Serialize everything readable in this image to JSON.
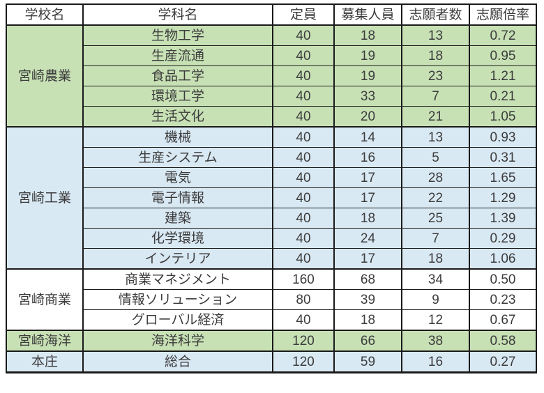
{
  "chart_data": {
    "type": "table",
    "columns": [
      "学校名",
      "学科名",
      "定員",
      "募集人員",
      "志願者数",
      "志願倍率"
    ],
    "groups": [
      {
        "school": "宮崎農業",
        "color": "green",
        "rows": [
          {
            "dept": "生物工学",
            "capacity": "40",
            "recruit": "18",
            "applicants": "13",
            "ratio": "0.72"
          },
          {
            "dept": "生産流通",
            "capacity": "40",
            "recruit": "19",
            "applicants": "18",
            "ratio": "0.95"
          },
          {
            "dept": "食品工学",
            "capacity": "40",
            "recruit": "19",
            "applicants": "23",
            "ratio": "1.21"
          },
          {
            "dept": "環境工学",
            "capacity": "40",
            "recruit": "33",
            "applicants": "7",
            "ratio": "0.21"
          },
          {
            "dept": "生活文化",
            "capacity": "40",
            "recruit": "20",
            "applicants": "21",
            "ratio": "1.05"
          }
        ]
      },
      {
        "school": "宮崎工業",
        "color": "blue",
        "rows": [
          {
            "dept": "機械",
            "capacity": "40",
            "recruit": "14",
            "applicants": "13",
            "ratio": "0.93"
          },
          {
            "dept": "生産システム",
            "capacity": "40",
            "recruit": "16",
            "applicants": "5",
            "ratio": "0.31"
          },
          {
            "dept": "電気",
            "capacity": "40",
            "recruit": "17",
            "applicants": "28",
            "ratio": "1.65"
          },
          {
            "dept": "電子情報",
            "capacity": "40",
            "recruit": "17",
            "applicants": "22",
            "ratio": "1.29"
          },
          {
            "dept": "建築",
            "capacity": "40",
            "recruit": "18",
            "applicants": "25",
            "ratio": "1.39"
          },
          {
            "dept": "化学環境",
            "capacity": "40",
            "recruit": "24",
            "applicants": "7",
            "ratio": "0.29"
          },
          {
            "dept": "インテリア",
            "capacity": "40",
            "recruit": "17",
            "applicants": "18",
            "ratio": "1.06"
          }
        ]
      },
      {
        "school": "宮崎商業",
        "color": "white",
        "rows": [
          {
            "dept": "商業マネジメント",
            "capacity": "160",
            "recruit": "68",
            "applicants": "34",
            "ratio": "0.50"
          },
          {
            "dept": "情報ソリューション",
            "capacity": "80",
            "recruit": "39",
            "applicants": "9",
            "ratio": "0.23"
          },
          {
            "dept": "グローバル経済",
            "capacity": "40",
            "recruit": "18",
            "applicants": "12",
            "ratio": "0.67"
          }
        ]
      },
      {
        "school": "宮崎海洋",
        "color": "green",
        "rows": [
          {
            "dept": "海洋科学",
            "capacity": "120",
            "recruit": "66",
            "applicants": "38",
            "ratio": "0.58"
          }
        ]
      },
      {
        "school": "本庄",
        "color": "blue",
        "rows": [
          {
            "dept": "総合",
            "capacity": "120",
            "recruit": "59",
            "applicants": "16",
            "ratio": "0.27"
          }
        ]
      }
    ],
    "layout": {
      "legend": "none",
      "grid": "all-borders",
      "merged_school_column": true
    }
  },
  "style": {
    "colors": {
      "green": "#c7e1b5",
      "blue": "#d9e9f4",
      "white": "#ffffff",
      "border": "#1a1a1a",
      "text": "#3c3c3c"
    }
  }
}
